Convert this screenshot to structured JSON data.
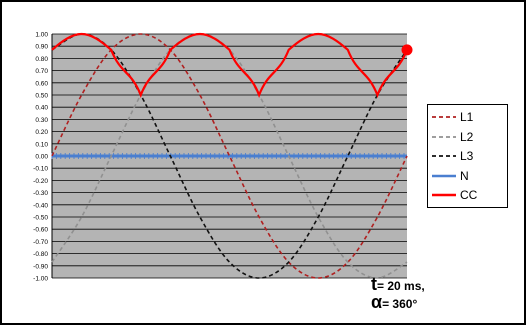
{
  "chart_data": {
    "type": "line",
    "ylim": [
      -1.0,
      1.0
    ],
    "y_ticks": [
      "1.00",
      "0.90",
      "0.80",
      "0.70",
      "0.60",
      "0.50",
      "0.40",
      "0.30",
      "0.20",
      "0.10",
      "0.00",
      "-0.10",
      "-0.20",
      "-0.30",
      "-0.40",
      "-0.50",
      "-0.60",
      "-0.70",
      "-0.80",
      "-0.90",
      "-1.00"
    ],
    "x_range_degrees": [
      0,
      360
    ],
    "grid": true,
    "legend_position": "right",
    "series": [
      {
        "name": "L1",
        "color": "#b02020",
        "dash": "dashed",
        "x": [
          0,
          30,
          60,
          90,
          120,
          150,
          180,
          210,
          240,
          270,
          300,
          330,
          360
        ],
        "values": [
          0.0,
          0.5,
          0.87,
          1.0,
          0.87,
          0.5,
          0.0,
          -0.5,
          -0.87,
          -1.0,
          -0.87,
          -0.5,
          0.0
        ]
      },
      {
        "name": "L2",
        "color": "#909090",
        "dash": "dashed",
        "x": [
          0,
          30,
          60,
          90,
          120,
          150,
          180,
          210,
          240,
          270,
          300,
          330,
          360
        ],
        "values": [
          -0.87,
          -0.5,
          0.0,
          0.5,
          0.87,
          1.0,
          0.87,
          0.5,
          0.0,
          -0.5,
          -0.87,
          -1.0,
          -0.87
        ]
      },
      {
        "name": "L3",
        "color": "#111111",
        "dash": "dashed",
        "x": [
          0,
          30,
          60,
          90,
          120,
          150,
          180,
          210,
          240,
          270,
          300,
          330,
          360
        ],
        "values": [
          0.87,
          1.0,
          0.87,
          0.5,
          0.0,
          -0.5,
          -0.87,
          -1.0,
          -0.87,
          -0.5,
          0.0,
          0.5,
          0.87
        ]
      },
      {
        "name": "N",
        "color": "#4a7fd0",
        "dash": "solid",
        "x": [
          0,
          360
        ],
        "values": [
          0.0,
          0.0
        ]
      },
      {
        "name": "CC",
        "color": "#ff0000",
        "dash": "solid",
        "x": [
          0,
          30,
          60,
          90,
          120,
          150,
          180,
          210,
          240,
          270,
          300,
          330,
          360
        ],
        "values": [
          0.87,
          1.0,
          0.87,
          0.5,
          0.87,
          1.0,
          0.87,
          0.5,
          0.87,
          1.0,
          0.87,
          0.5,
          0.87
        ]
      }
    ],
    "endpoint_marker": {
      "series": "CC",
      "x": 360,
      "y": 0.87,
      "color": "#ff0000"
    }
  },
  "annotation": {
    "t_symbol": "t",
    "t_value": "= 20 ms,",
    "alpha_symbol": "α",
    "alpha_value": "= 360°"
  }
}
